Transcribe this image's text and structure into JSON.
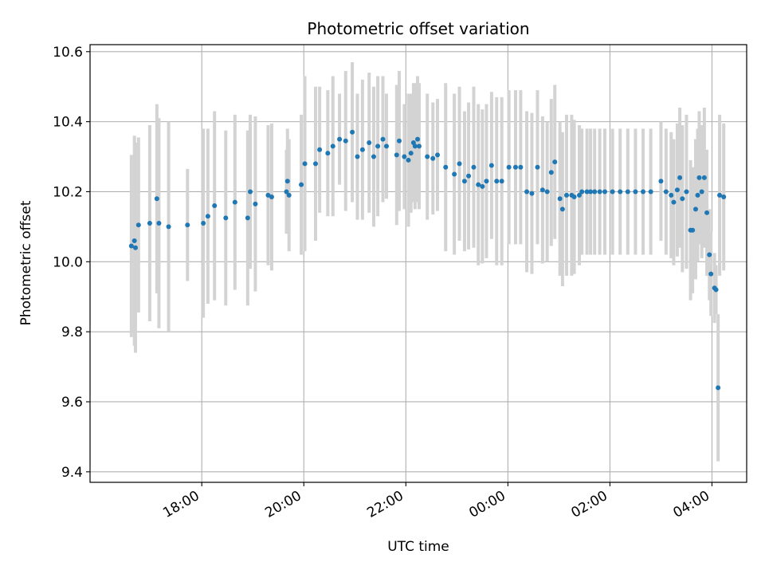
{
  "chart_data": {
    "type": "scatter",
    "title": "Photometric offset variation",
    "xlabel": "UTC time",
    "ylabel": "Photometric offset",
    "x_unit": "UTC hours (sequential, values above 24 denote the following day)",
    "xlim": [
      15.81,
      28.68
    ],
    "ylim": [
      9.37,
      10.62
    ],
    "x_ticks": [
      {
        "value": 18,
        "label": "18:00"
      },
      {
        "value": 20,
        "label": "20:00"
      },
      {
        "value": 22,
        "label": "22:00"
      },
      {
        "value": 24,
        "label": "00:00"
      },
      {
        "value": 26,
        "label": "02:00"
      },
      {
        "value": 28,
        "label": "04:00"
      }
    ],
    "y_ticks": [
      {
        "value": 9.4,
        "label": "9.4"
      },
      {
        "value": 9.6,
        "label": "9.6"
      },
      {
        "value": 9.8,
        "label": "9.8"
      },
      {
        "value": 10.0,
        "label": "10.0"
      },
      {
        "value": 10.2,
        "label": "10.2"
      },
      {
        "value": 10.4,
        "label": "10.4"
      },
      {
        "value": 10.6,
        "label": "10.6"
      }
    ],
    "grid": true,
    "colors": {
      "points": "#1f77b4",
      "errorbars": "#d3d3d3",
      "grid": "#b0b0b0"
    },
    "series": [
      {
        "x": [
          16.62,
          16.68,
          16.7,
          16.76,
          16.98,
          17.12,
          17.16,
          17.35,
          17.72,
          18.03,
          18.12,
          18.25,
          18.47,
          18.65,
          18.9,
          18.95,
          19.05,
          19.3,
          19.37,
          19.66,
          19.68,
          19.71,
          19.95,
          20.02,
          20.23,
          20.31,
          20.47,
          20.57,
          20.7,
          20.82,
          20.95,
          21.05,
          21.15,
          21.28,
          21.37,
          21.45,
          21.55,
          21.62,
          21.82,
          21.87,
          21.97,
          22.05,
          22.1,
          22.15,
          22.18,
          22.23,
          22.26,
          22.42,
          22.53,
          22.62,
          22.78,
          22.95,
          23.05,
          23.15,
          23.23,
          23.33,
          23.42,
          23.5,
          23.58,
          23.68,
          23.78,
          23.88,
          24.02,
          24.15,
          24.25,
          24.37,
          24.47,
          24.58,
          24.68,
          24.77,
          24.85,
          24.92,
          25.02,
          25.07,
          25.15,
          25.25,
          25.3,
          25.4,
          25.45,
          25.55,
          25.62,
          25.7,
          25.8,
          25.9,
          26.05,
          26.2,
          26.35,
          26.5,
          26.65,
          26.8,
          27.0,
          27.1,
          27.2,
          27.25,
          27.32,
          27.37,
          27.42,
          27.5,
          27.58,
          27.62,
          27.68,
          27.72,
          27.75,
          27.8,
          27.85,
          27.9,
          27.95,
          27.98,
          28.05,
          28.08,
          28.12,
          28.15,
          28.23
        ],
        "y": [
          10.045,
          10.06,
          10.04,
          10.105,
          10.11,
          10.18,
          10.11,
          10.1,
          10.105,
          10.11,
          10.13,
          10.16,
          10.125,
          10.17,
          10.125,
          10.2,
          10.165,
          10.19,
          10.185,
          10.2,
          10.23,
          10.19,
          10.22,
          10.28,
          10.28,
          10.32,
          10.31,
          10.33,
          10.35,
          10.345,
          10.37,
          10.3,
          10.32,
          10.34,
          10.3,
          10.33,
          10.35,
          10.33,
          10.305,
          10.345,
          10.3,
          10.29,
          10.31,
          10.34,
          10.33,
          10.35,
          10.33,
          10.3,
          10.295,
          10.305,
          10.27,
          10.25,
          10.28,
          10.23,
          10.245,
          10.27,
          10.22,
          10.215,
          10.23,
          10.275,
          10.23,
          10.23,
          10.27,
          10.27,
          10.27,
          10.2,
          10.195,
          10.27,
          10.205,
          10.2,
          10.255,
          10.285,
          10.18,
          10.15,
          10.19,
          10.19,
          10.185,
          10.19,
          10.2,
          10.2,
          10.2,
          10.2,
          10.2,
          10.2,
          10.2,
          10.2,
          10.2,
          10.2,
          10.2,
          10.2,
          10.23,
          10.2,
          10.19,
          10.17,
          10.205,
          10.24,
          10.18,
          10.2,
          10.09,
          10.09,
          10.15,
          10.19,
          10.24,
          10.2,
          10.24,
          10.14,
          10.02,
          9.965,
          9.925,
          9.92,
          9.64,
          10.19,
          10.185
        ],
        "err": [
          0.26,
          0.3,
          0.3,
          0.25,
          0.28,
          0.27,
          0.3,
          0.3,
          0.16,
          0.27,
          0.25,
          0.27,
          0.25,
          0.25,
          0.25,
          0.22,
          0.25,
          0.2,
          0.21,
          0.12,
          0.15,
          0.16,
          0.2,
          0.25,
          0.22,
          0.18,
          0.18,
          0.2,
          0.13,
          0.2,
          0.2,
          0.18,
          0.2,
          0.2,
          0.2,
          0.2,
          0.18,
          0.15,
          0.2,
          0.2,
          0.15,
          0.19,
          0.17,
          0.17,
          0.18,
          0.18,
          0.18,
          0.18,
          0.16,
          0.16,
          0.24,
          0.23,
          0.22,
          0.2,
          0.21,
          0.23,
          0.23,
          0.22,
          0.22,
          0.21,
          0.24,
          0.24,
          0.22,
          0.22,
          0.22,
          0.23,
          0.23,
          0.22,
          0.21,
          0.2,
          0.21,
          0.22,
          0.22,
          0.22,
          0.23,
          0.23,
          0.22,
          0.2,
          0.18,
          0.18,
          0.18,
          0.18,
          0.18,
          0.18,
          0.18,
          0.18,
          0.18,
          0.18,
          0.18,
          0.18,
          0.17,
          0.18,
          0.18,
          0.18,
          0.19,
          0.2,
          0.21,
          0.22,
          0.2,
          0.18,
          0.2,
          0.19,
          0.19,
          0.19,
          0.2,
          0.18,
          0.13,
          0.12,
          0.1,
          0.07,
          0.21,
          0.23,
          0.21
        ]
      }
    ]
  }
}
